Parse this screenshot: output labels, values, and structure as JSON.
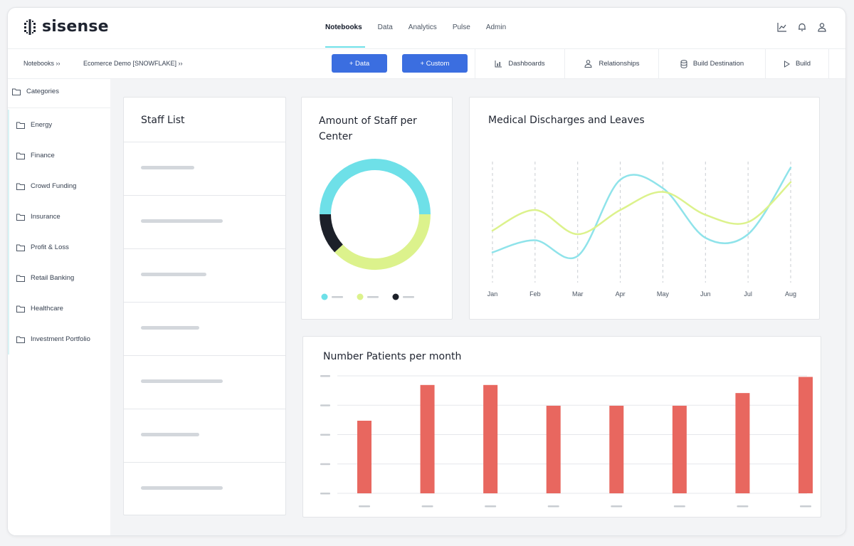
{
  "app": {
    "logo_text": "sisense"
  },
  "nav": [
    {
      "label": "Notebooks",
      "active": true
    },
    {
      "label": "Data",
      "active": false
    },
    {
      "label": "Analytics",
      "active": false
    },
    {
      "label": "Pulse",
      "active": false
    },
    {
      "label": "Admin",
      "active": false
    }
  ],
  "top_icons": [
    "chart-icon",
    "bell-icon",
    "user-icon"
  ],
  "breadcrumb": {
    "notebooks": "Notebooks ››",
    "project": "Ecomerce Demo [SNOWFLAKE] ››"
  },
  "toolbar": {
    "data_button": "+ Data",
    "custom_button": "+ Custom",
    "dashboards": "Dashboards",
    "relationships": "Relationships",
    "build_destination": "Build Destination",
    "build": "Build"
  },
  "sidebar": {
    "header": "Categories",
    "items": [
      {
        "label": "Energy"
      },
      {
        "label": "Finance"
      },
      {
        "label": "Crowd Funding"
      },
      {
        "label": "Insurance"
      },
      {
        "label": "Profit & Loss"
      },
      {
        "label": "Retail Banking"
      },
      {
        "label": "Healthcare"
      },
      {
        "label": "Investment Portfolio"
      }
    ]
  },
  "staff_list": {
    "title": "Staff List",
    "rows": 7
  },
  "colors": {
    "accent": "#3b6ee0",
    "cyan": "#6ee0e8",
    "lime": "#dcf28c",
    "dark": "#1c2029",
    "bar": "#e8675f"
  },
  "chart_data": [
    {
      "type": "pie",
      "title": "Amount of Staff per Center",
      "values": [
        50,
        38,
        12
      ],
      "colors": [
        "#6ee0e8",
        "#dcf28c",
        "#1c2029"
      ],
      "legend": [
        "",
        "",
        ""
      ]
    },
    {
      "type": "line",
      "title": "Medical Discharges and Leaves",
      "categories": [
        "Jan",
        "Feb",
        "Mar",
        "Apr",
        "May",
        "Jun",
        "Jul",
        "Aug"
      ],
      "series": [
        {
          "values": [
            0.25,
            0.35,
            0.22,
            0.85,
            0.78,
            0.37,
            0.4,
            0.95
          ],
          "color": "#8fe3ea"
        },
        {
          "values": [
            0.43,
            0.6,
            0.4,
            0.6,
            0.75,
            0.56,
            0.5,
            0.83
          ],
          "color": "#dcf28c"
        }
      ],
      "ylim": [
        0,
        1
      ],
      "grid": "vertical-dashed"
    },
    {
      "type": "bar",
      "title": "Number Patients per month",
      "categories": [
        "",
        "",
        "",
        "",
        "",
        "",
        "",
        ""
      ],
      "values": [
        63,
        94,
        94,
        76,
        76,
        76,
        87,
        101
      ],
      "ylim": [
        0,
        105
      ],
      "color": "#e8675f"
    }
  ]
}
